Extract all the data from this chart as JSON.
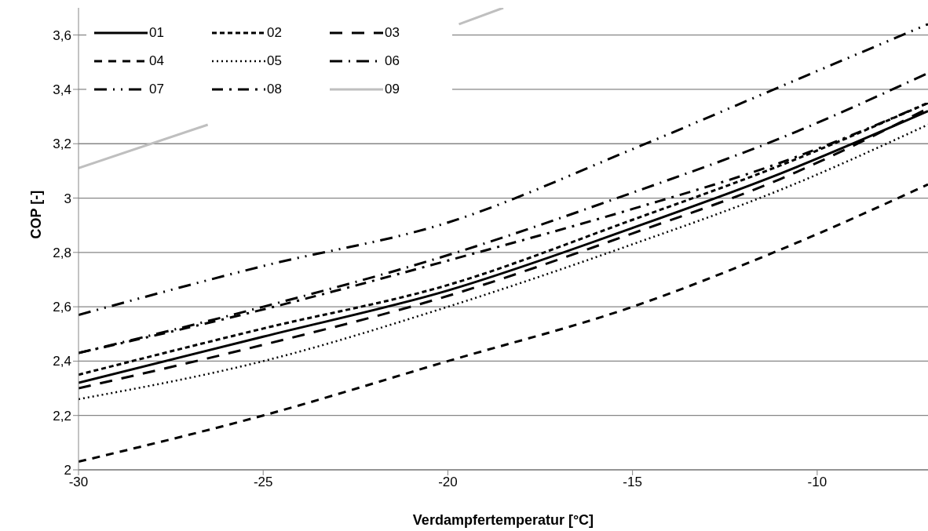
{
  "chart_data": {
    "type": "line",
    "xlabel": "Verdampfertemperatur [°C]",
    "ylabel": "COP [-]",
    "xlim": [
      -30,
      -7
    ],
    "xticks": [
      -30,
      -25,
      -20,
      -15,
      -10
    ],
    "ylim": [
      2,
      3.7
    ],
    "yticks": [
      2,
      {
        "value": 2.2,
        "label": "2,2"
      },
      {
        "value": 2.4,
        "label": "2,4"
      },
      {
        "value": 2.6,
        "label": "2,6"
      },
      {
        "value": 2.8,
        "label": "2,8"
      },
      3,
      {
        "value": 3.2,
        "label": "3,2"
      },
      {
        "value": 3.4,
        "label": "3,4"
      },
      {
        "value": 3.6,
        "label": "3,6"
      }
    ],
    "grid": "y",
    "legend": "top left",
    "marker": "none",
    "x": [
      -30,
      -25,
      -20,
      -15,
      -11,
      -7
    ],
    "series": [
      {
        "name": "01",
        "color": "#000000",
        "line_style": "solid",
        "values": [
          2.32,
          2.49,
          2.66,
          2.89,
          3.09,
          3.32
        ]
      },
      {
        "name": "02",
        "color": "#000000",
        "line_style": "dashed",
        "values": [
          2.35,
          2.52,
          2.68,
          2.92,
          3.12,
          3.35
        ]
      },
      {
        "name": "03",
        "color": "#000000",
        "line_style": "dashed",
        "values": [
          2.3,
          2.46,
          2.64,
          2.87,
          3.07,
          3.33
        ]
      },
      {
        "name": "04",
        "color": "#000000",
        "line_style": "dashed",
        "values": [
          2.03,
          2.2,
          2.4,
          2.6,
          2.81,
          3.05
        ]
      },
      {
        "name": "05",
        "color": "#000000",
        "line_style": "dotted",
        "values": [
          2.26,
          2.4,
          2.6,
          2.83,
          3.03,
          3.27
        ]
      },
      {
        "name": "06",
        "color": "#000000",
        "line_style": "dashed",
        "values": [
          2.43,
          2.6,
          2.79,
          3.02,
          3.22,
          3.46
        ]
      },
      {
        "name": "07",
        "color": "#000000",
        "line_style": "dashed",
        "values": [
          2.57,
          2.75,
          2.91,
          3.18,
          3.41,
          3.64
        ]
      },
      {
        "name": "08",
        "color": "#000000",
        "line_style": "dashed",
        "values": [
          2.43,
          2.59,
          2.77,
          2.96,
          3.13,
          3.35
        ]
      },
      {
        "name": "09",
        "color": "#bfbfbf",
        "line_style": "solid",
        "x": [
          -30,
          -26.5,
          -22,
          -19.7,
          -18.5
        ],
        "values": [
          3.11,
          3.27,
          null,
          3.64,
          3.7
        ]
      }
    ]
  }
}
